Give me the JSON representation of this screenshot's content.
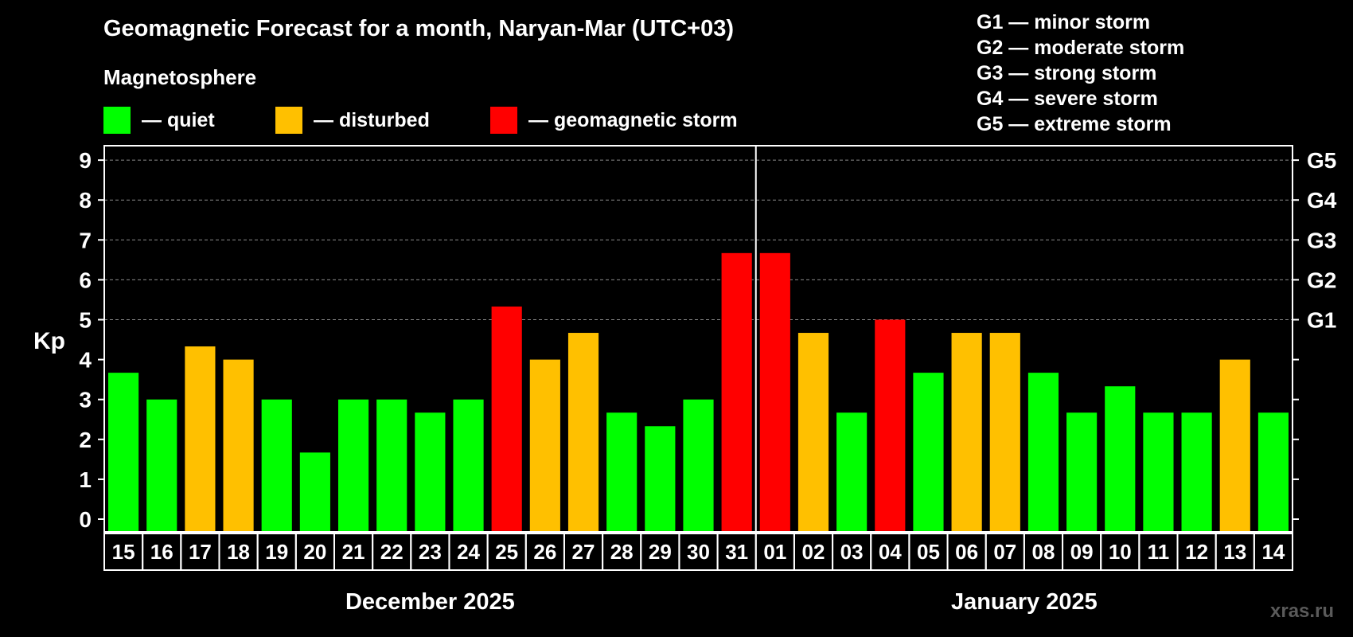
{
  "header": {
    "title": "Geomagnetic Forecast for a month, Naryan-Mar (UTC+03)",
    "subtitle": "Magnetosphere"
  },
  "legend": [
    {
      "label": "— quiet",
      "color": "#00ff00"
    },
    {
      "label": "— disturbed",
      "color": "#ffc000"
    },
    {
      "label": "— geomagnetic storm",
      "color": "#ff0000"
    }
  ],
  "storm_levels": [
    "G1 — minor storm",
    "G2 — moderate storm",
    "G3 — strong storm",
    "G4 — severe storm",
    "G5 — extreme storm"
  ],
  "watermark": "xras.ru",
  "chart_data": {
    "type": "bar",
    "ylabel": "Kp",
    "ylim": [
      0,
      9
    ],
    "yticks": [
      "0",
      "1",
      "2",
      "3",
      "4",
      "5",
      "6",
      "7",
      "8",
      "9"
    ],
    "right_axis_labels": [
      {
        "kp": 5,
        "label": "G1"
      },
      {
        "kp": 6,
        "label": "G2"
      },
      {
        "kp": 7,
        "label": "G3"
      },
      {
        "kp": 8,
        "label": "G4"
      },
      {
        "kp": 9,
        "label": "G5"
      }
    ],
    "grid": true,
    "categories": [
      "15",
      "16",
      "17",
      "18",
      "19",
      "20",
      "21",
      "22",
      "23",
      "24",
      "25",
      "26",
      "27",
      "28",
      "29",
      "30",
      "31",
      "01",
      "02",
      "03",
      "04",
      "05",
      "06",
      "07",
      "08",
      "09",
      "10",
      "11",
      "12",
      "13",
      "14"
    ],
    "values": [
      3.67,
      3,
      4.33,
      4,
      3,
      1.67,
      3,
      3,
      2.67,
      3,
      5.33,
      4,
      4.67,
      2.67,
      2.33,
      3,
      6.67,
      6.67,
      4.67,
      2.67,
      5,
      3.67,
      4.67,
      4.67,
      3.67,
      2.67,
      3.33,
      2.67,
      2.67,
      4,
      2.67
    ],
    "levels": [
      "quiet",
      "quiet",
      "disturbed",
      "disturbed",
      "quiet",
      "quiet",
      "quiet",
      "quiet",
      "quiet",
      "quiet",
      "storm",
      "disturbed",
      "disturbed",
      "quiet",
      "quiet",
      "quiet",
      "storm",
      "storm",
      "disturbed",
      "quiet",
      "storm",
      "quiet",
      "disturbed",
      "disturbed",
      "quiet",
      "quiet",
      "quiet",
      "quiet",
      "quiet",
      "disturbed",
      "quiet"
    ],
    "level_colors": {
      "quiet": "#00ff00",
      "disturbed": "#ffc000",
      "storm": "#ff0000"
    },
    "month_groups": [
      {
        "label": "December 2025",
        "count": 17
      },
      {
        "label": "January 2025",
        "count": 14
      }
    ]
  }
}
